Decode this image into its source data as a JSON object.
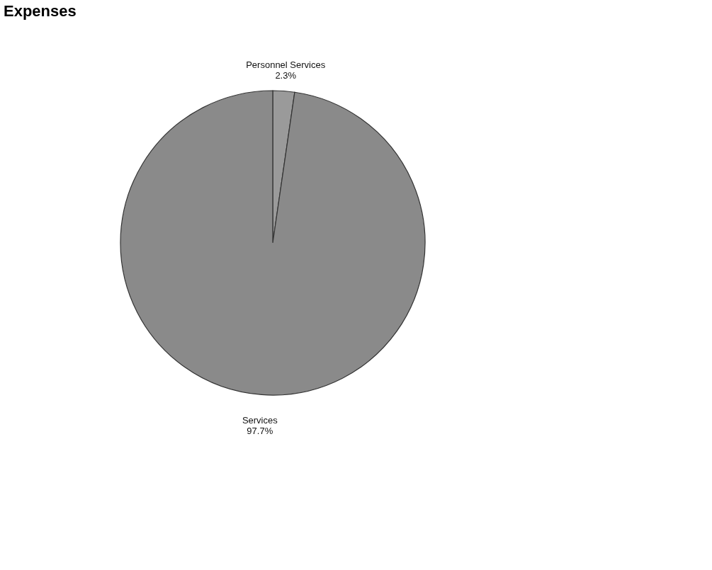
{
  "chart_data": {
    "type": "pie",
    "title": "Expenses",
    "categories": [
      "Personnel Services",
      "Services"
    ],
    "values": [
      2.3,
      97.7
    ],
    "value_labels": [
      "2.3%",
      "97.7%"
    ],
    "colors": [
      "#9a9a9a",
      "#8a8a8a"
    ],
    "legend": false
  }
}
